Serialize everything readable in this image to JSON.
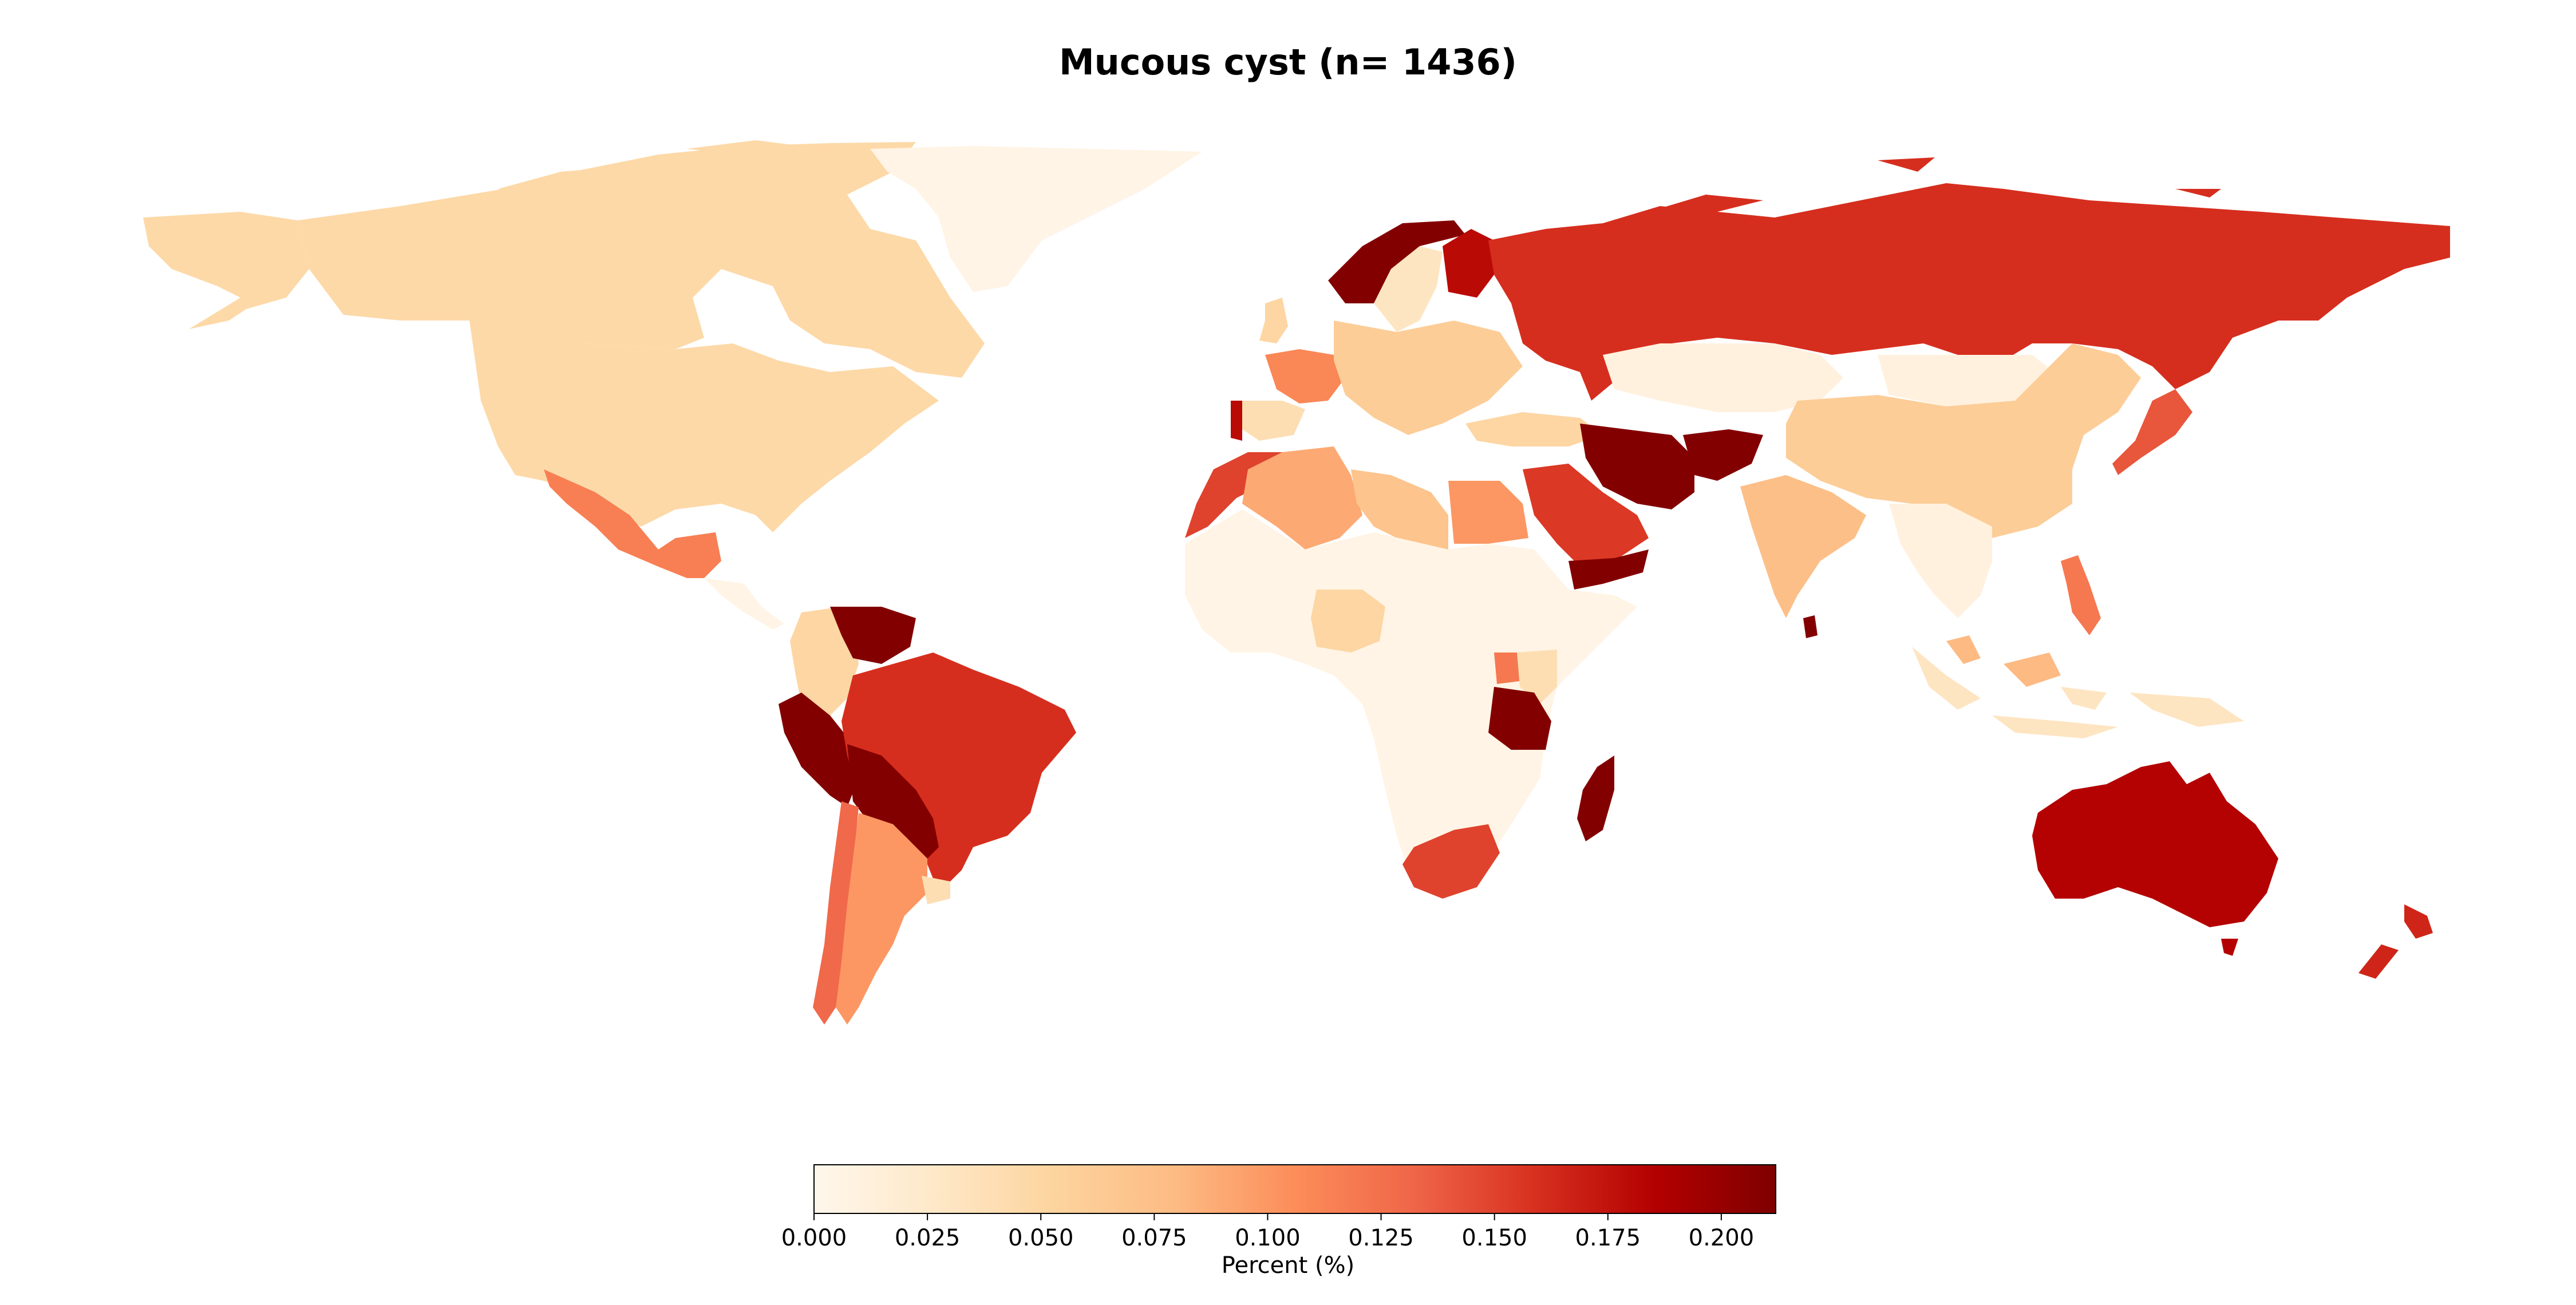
{
  "title": "Mucous cyst (n= 1436)",
  "colorbar": {
    "label": "Percent (%)",
    "ticks": [
      "0.000",
      "0.025",
      "0.050",
      "0.075",
      "0.100",
      "0.125",
      "0.150",
      "0.175",
      "0.200"
    ],
    "min": 0.0,
    "max": 0.212,
    "colormap": "OrRd",
    "stops": [
      "#fff7ec",
      "#fee8c8",
      "#fdd49e",
      "#fdbb84",
      "#fc8d59",
      "#ef6548",
      "#d7301f",
      "#b30000",
      "#7f0000"
    ]
  },
  "regions": [
    {
      "name": "Canada",
      "value": 0.047
    },
    {
      "name": "United States",
      "value": 0.047
    },
    {
      "name": "Alaska",
      "value": 0.047
    },
    {
      "name": "Greenland",
      "value": 0.005
    },
    {
      "name": "Mexico",
      "value": 0.115
    },
    {
      "name": "Russia",
      "value": 0.16
    },
    {
      "name": "Kazakhstan",
      "value": 0.01
    },
    {
      "name": "China",
      "value": 0.06
    },
    {
      "name": "Mongolia",
      "value": 0.01
    },
    {
      "name": "Iran",
      "value": 0.21
    },
    {
      "name": "Afghanistan",
      "value": 0.21
    },
    {
      "name": "Saudi Arabia",
      "value": 0.155
    },
    {
      "name": "Yemen",
      "value": 0.21
    },
    {
      "name": "India",
      "value": 0.075
    },
    {
      "name": "Sri Lanka",
      "value": 0.21
    },
    {
      "name": "Japan",
      "value": 0.14
    },
    {
      "name": "Philippines",
      "value": 0.12
    },
    {
      "name": "Indonesia",
      "value": 0.03
    },
    {
      "name": "Malaysia",
      "value": 0.08
    },
    {
      "name": "Southeast Asia",
      "value": 0.01
    },
    {
      "name": "Australia",
      "value": 0.185
    },
    {
      "name": "New Zealand",
      "value": 0.165
    },
    {
      "name": "Norway",
      "value": 0.21
    },
    {
      "name": "Sweden",
      "value": 0.03
    },
    {
      "name": "Finland",
      "value": 0.18
    },
    {
      "name": "United Kingdom",
      "value": 0.05
    },
    {
      "name": "France",
      "value": 0.11
    },
    {
      "name": "Spain",
      "value": 0.04
    },
    {
      "name": "Portugal",
      "value": 0.18
    },
    {
      "name": "Central Europe",
      "value": 0.06
    },
    {
      "name": "Turkey",
      "value": 0.05
    },
    {
      "name": "Morocco",
      "value": 0.15
    },
    {
      "name": "Algeria",
      "value": 0.09
    },
    {
      "name": "Libya",
      "value": 0.07
    },
    {
      "name": "Egypt",
      "value": 0.1
    },
    {
      "name": "Sub-Saharan Africa",
      "value": 0.005
    },
    {
      "name": "Nigeria",
      "value": 0.05
    },
    {
      "name": "Tanzania",
      "value": 0.21
    },
    {
      "name": "Kenya",
      "value": 0.04
    },
    {
      "name": "Uganda",
      "value": 0.12
    },
    {
      "name": "South Africa",
      "value": 0.15
    },
    {
      "name": "Madagascar",
      "value": 0.21
    },
    {
      "name": "Brazil",
      "value": 0.16
    },
    {
      "name": "Venezuela",
      "value": 0.21
    },
    {
      "name": "Colombia",
      "value": 0.05
    },
    {
      "name": "Peru",
      "value": 0.21
    },
    {
      "name": "Bolivia",
      "value": 0.21
    },
    {
      "name": "Argentina",
      "value": 0.1
    },
    {
      "name": "Chile",
      "value": 0.13
    },
    {
      "name": "Uruguay",
      "value": 0.04
    }
  ]
}
